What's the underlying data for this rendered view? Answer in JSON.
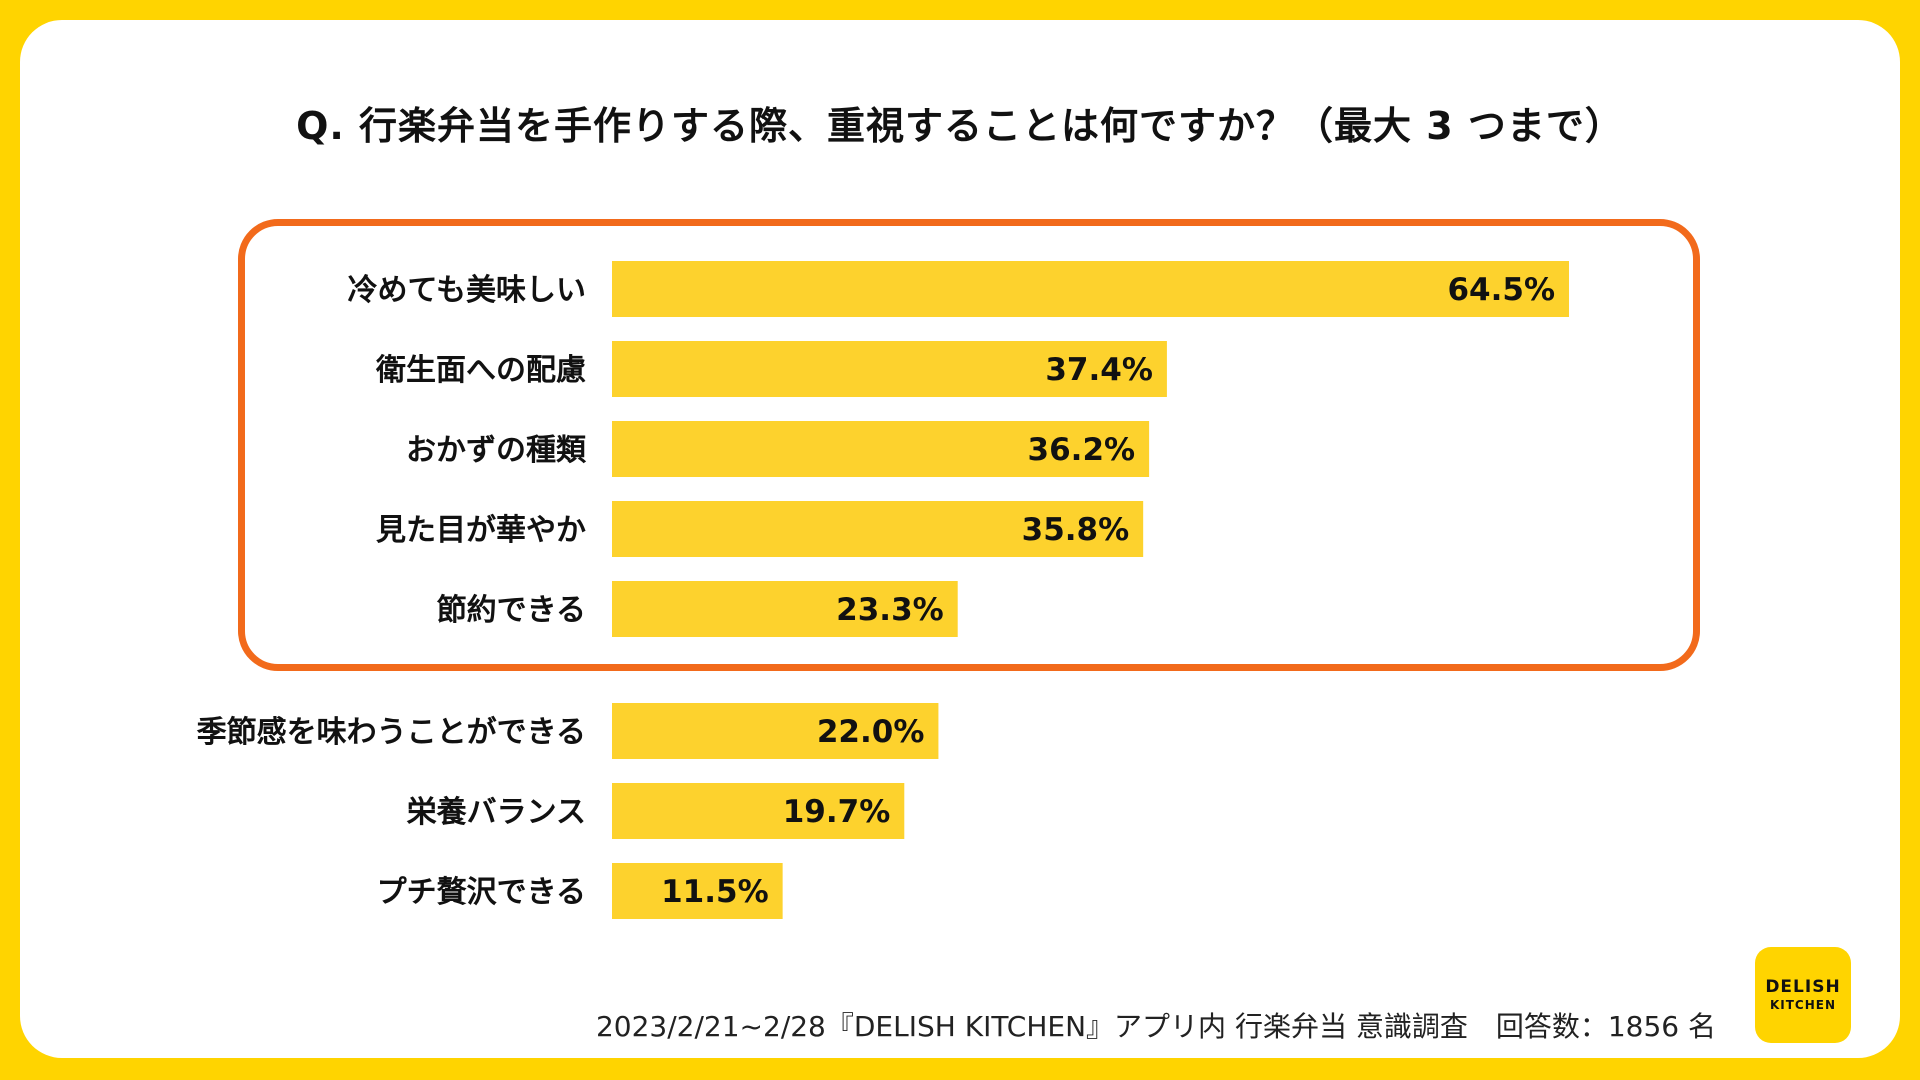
{
  "title": "Q. 行楽弁当を手作りする際、重視することは何ですか？（最大 3 つまで）",
  "chart_data": {
    "type": "bar",
    "orientation": "horizontal",
    "title": "Q. 行楽弁当を手作りする際、重視することは何ですか？（最大 3 つまで）",
    "categories": [
      "冷めても美味しい",
      "衛生面への配慮",
      "おかずの種類",
      "見た目が華やか",
      "節約できる",
      "季節感を味わうことができる",
      "栄養バランス",
      "プチ贅沢できる"
    ],
    "values": [
      64.5,
      37.4,
      36.2,
      35.8,
      23.3,
      22.0,
      19.7,
      11.5
    ],
    "value_labels": [
      "64.5%",
      "37.4%",
      "36.2%",
      "35.8%",
      "23.3%",
      "22.0%",
      "19.7%",
      "11.5%"
    ],
    "unit": "%",
    "bar_color": "#FDD22D",
    "highlight_color": "#F26A1B",
    "highlighted_top_n": 5,
    "xlim": [
      0,
      100
    ]
  },
  "footer": "2023/2/21~2/28『DELISH KITCHEN』アプリ内 行楽弁当 意識調査　回答数：1856 名",
  "logo": {
    "line1": "DELISH",
    "line2": "KITCHEN"
  }
}
